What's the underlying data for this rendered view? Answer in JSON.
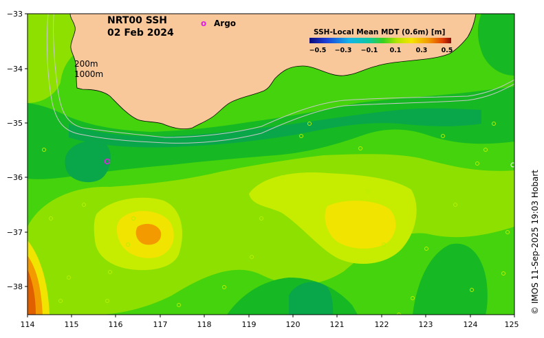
{
  "title_line1": "NRT00 SSH",
  "title_line2": "02 Feb 2024",
  "legend": {
    "argo_symbol": "o",
    "argo_label": "Argo"
  },
  "isobaths": {
    "shallow": "200m",
    "deep": "1000m"
  },
  "colorbar": {
    "title": "SSH-Local Mean MDT (0.6m) [m]",
    "ticks": [
      "−0.5",
      "−0.3",
      "−0.1",
      "0.1",
      "0.3",
      "0.5"
    ]
  },
  "x_ticks": [
    "114",
    "115",
    "116",
    "117",
    "118",
    "119",
    "120",
    "121",
    "122",
    "123",
    "124",
    "125"
  ],
  "y_ticks": [
    "−33",
    "−34",
    "−35",
    "−36",
    "−37",
    "−38"
  ],
  "credit": "© IMOS 11-Sep-2025 19:03 Hobart",
  "colors": {
    "land": "#f8c89a",
    "deep_green": "#0aa64a",
    "green": "#16b824",
    "bright_green": "#44d30c",
    "lime": "#8ee000",
    "yellow_green": "#c6ec00",
    "yellow": "#f0e400",
    "orange": "#f29a00",
    "dark_orange": "#e06000",
    "argo": "#e020e0"
  },
  "argo_float": {
    "lon": 115.8,
    "lat": -35.7
  }
}
